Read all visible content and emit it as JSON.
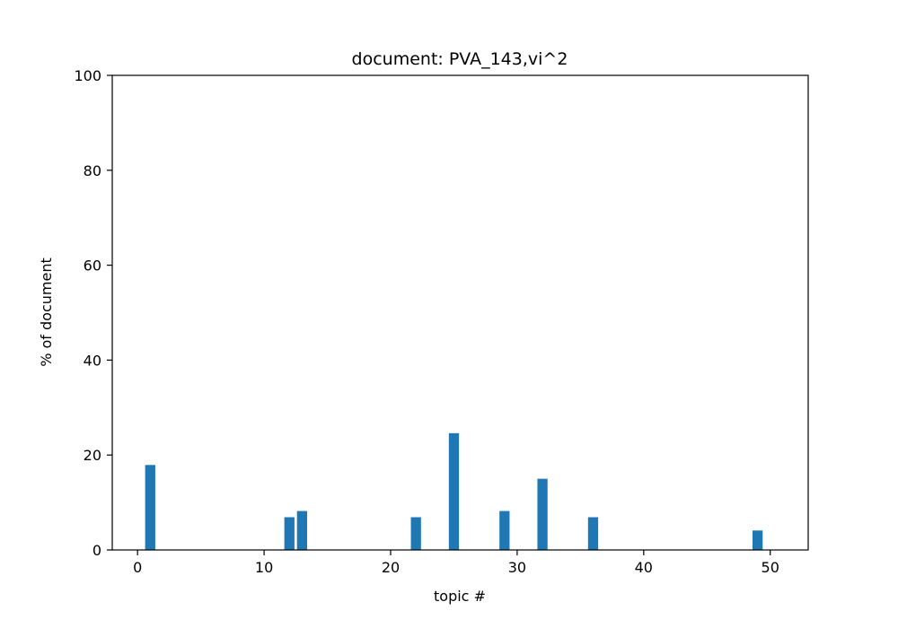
{
  "chart_data": {
    "type": "bar",
    "title": "document: PVA_143,vi^2",
    "xlabel": "topic #",
    "ylabel": "% of document",
    "xlim": [
      -2,
      53
    ],
    "ylim": [
      0,
      100
    ],
    "xticks": [
      0,
      10,
      20,
      30,
      40,
      50
    ],
    "yticks": [
      0,
      20,
      40,
      60,
      80,
      100
    ],
    "x": [
      1,
      12,
      13,
      22,
      25,
      29,
      32,
      36,
      49
    ],
    "values": [
      17.9,
      6.9,
      8.2,
      6.9,
      24.6,
      8.2,
      15.0,
      6.9,
      4.1
    ],
    "bar_width": 0.8,
    "bar_color": "#1f77b4",
    "grid": false,
    "legend": "none"
  }
}
